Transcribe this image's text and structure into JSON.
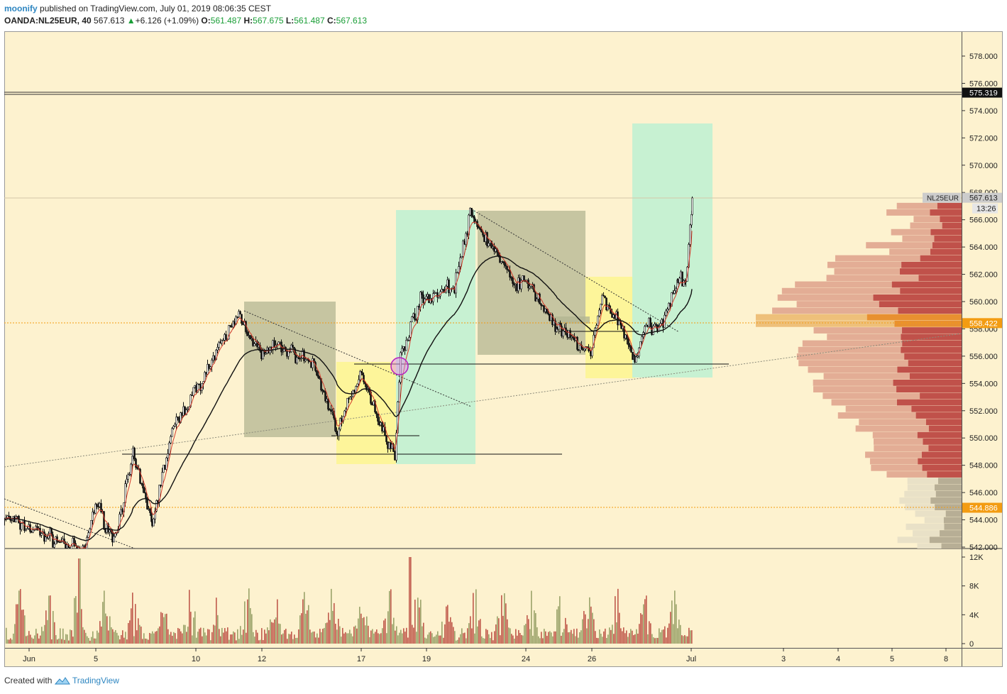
{
  "header": {
    "author": "moonify",
    "published": "published on TradingView.com, July 01, 2019 08:06:35 CEST",
    "symbol": "OANDA:NL25EUR, 40",
    "last": "567.613",
    "change_arrow": "▲",
    "change": "+6.126 (+1.09%)",
    "o_label": "O:",
    "o": "561.487",
    "h_label": "H:",
    "h": "567.675",
    "l_label": "L:",
    "l": "561.487",
    "c_label": "C:",
    "c": "567.613"
  },
  "footer": {
    "created_with": "Created with",
    "brand": "TradingView"
  },
  "chart_data": {
    "type": "candlestick",
    "symbol": "NL25EUR",
    "timeframe": "40",
    "x_tick_labels": [
      "Jun",
      "5",
      "10",
      "12",
      "17",
      "19",
      "24",
      "26",
      "Jul",
      "3",
      "4",
      "5",
      "8"
    ],
    "y_tick_labels": [
      "542.000",
      "544.000",
      "546.000",
      "548.000",
      "550.000",
      "552.000",
      "554.000",
      "556.000",
      "558.000",
      "560.000",
      "562.000",
      "564.000",
      "566.000",
      "568.000",
      "570.000",
      "572.000",
      "574.000",
      "576.000",
      "578.000"
    ],
    "ylim": [
      541.9,
      580.4
    ],
    "price_labels": [
      {
        "value": 575.319,
        "text": "575.319",
        "color": "#111111"
      },
      {
        "value": 567.613,
        "text": "567.613",
        "color": "#cccccc"
      },
      {
        "value": 558.422,
        "text": "558.422",
        "color": "#f39c12"
      },
      {
        "value": 544.886,
        "text": "544.886",
        "color": "#f39c12"
      }
    ],
    "symbol_label": "NL25EUR",
    "countdown": "13:26",
    "horizontal_lines": [
      {
        "price": 575.319,
        "style": "double"
      },
      {
        "price": 558.422,
        "style": "dotted",
        "color": "#f39c12"
      },
      {
        "price": 544.886,
        "style": "dotted",
        "color": "#f39c12"
      }
    ],
    "anchors": [
      {
        "x": "Jun 1",
        "close": 544.2
      },
      {
        "x": "Jun 4",
        "close": 541.6
      },
      {
        "x": "Jun 5",
        "close": 545.3
      },
      {
        "x": "Jun 6",
        "close": 542.5
      },
      {
        "x": "Jun 7",
        "close": 548.6
      },
      {
        "x": "Jun 8",
        "close": 543.8
      },
      {
        "x": "Jun 9",
        "close": 550.5
      },
      {
        "x": "Jun 10",
        "close": 553.6
      },
      {
        "x": "Jun 11",
        "close": 559.1
      },
      {
        "x": "Jun 12",
        "close": 556.0
      },
      {
        "x": "Jun 13",
        "close": 556.8
      },
      {
        "x": "Jun 14",
        "close": 555.5
      },
      {
        "x": "Jun 15",
        "close": 550.6
      },
      {
        "x": "Jun 16",
        "close": 554.8
      },
      {
        "x": "Jun 17",
        "close": 551.8
      },
      {
        "x": "Jun 18",
        "close": 548.6
      },
      {
        "x": "Jun 18b",
        "close": 556.0
      },
      {
        "x": "Jun 19",
        "close": 560.0
      },
      {
        "x": "Jun 20",
        "close": 561.2
      },
      {
        "x": "Jun 21",
        "close": 566.3
      },
      {
        "x": "Jun 22",
        "close": 563.5
      },
      {
        "x": "Jun 23",
        "close": 561.5
      },
      {
        "x": "Jun 24",
        "close": 561.3
      },
      {
        "x": "Jun 25",
        "close": 559.2
      },
      {
        "x": "Jun 25b",
        "close": 558.0
      },
      {
        "x": "Jun 26",
        "close": 556.2
      },
      {
        "x": "Jun 26b",
        "close": 560.3
      },
      {
        "x": "Jun 27",
        "close": 558.2
      },
      {
        "x": "Jun 28",
        "close": 555.7
      },
      {
        "x": "Jun 28b",
        "close": 558.2
      },
      {
        "x": "Jun 29",
        "close": 557.9
      },
      {
        "x": "Jun 30",
        "close": 561.8
      },
      {
        "x": "Jun 30b",
        "close": 561.5
      },
      {
        "x": "Jul 1",
        "close": 567.6
      }
    ],
    "volume": {
      "y_tick_labels": [
        "0",
        "4K",
        "8K",
        "12K"
      ],
      "ylim": [
        0,
        12500
      ]
    }
  }
}
